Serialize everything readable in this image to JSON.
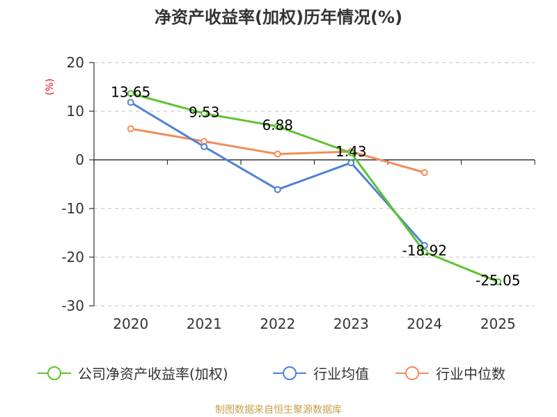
{
  "chart_data": {
    "type": "line",
    "title": "净资产收益率(加权)历年情况(%)",
    "unit_label": "(%)",
    "categories": [
      "2020",
      "2021",
      "2022",
      "2023",
      "2024",
      "2025"
    ],
    "ylim": [
      -30,
      20
    ],
    "yticks": [
      20,
      10,
      0,
      -10,
      -20,
      -30
    ],
    "ytick_labels": [
      "20",
      "10",
      "0",
      "-10",
      "-20",
      "-30"
    ],
    "grid": true,
    "series": [
      {
        "name": "公司净资产收益率(加权)",
        "color": "#5cc32e",
        "values": [
          13.65,
          9.53,
          6.88,
          1.43,
          -18.92,
          -25.05
        ],
        "labels": [
          "13.65",
          "9.53",
          "6.88",
          "1.43",
          "-18.92",
          "-25.05"
        ]
      },
      {
        "name": "行业均值",
        "color": "#4f81d6",
        "values": [
          11.8,
          2.7,
          -6.1,
          -0.6,
          -17.6,
          null
        ]
      },
      {
        "name": "行业中位数",
        "color": "#f48c5a",
        "values": [
          6.4,
          3.8,
          1.2,
          1.7,
          -2.6,
          null
        ]
      }
    ],
    "legend_position": "bottom"
  },
  "source": "制图数据来自恒生聚源数据库"
}
